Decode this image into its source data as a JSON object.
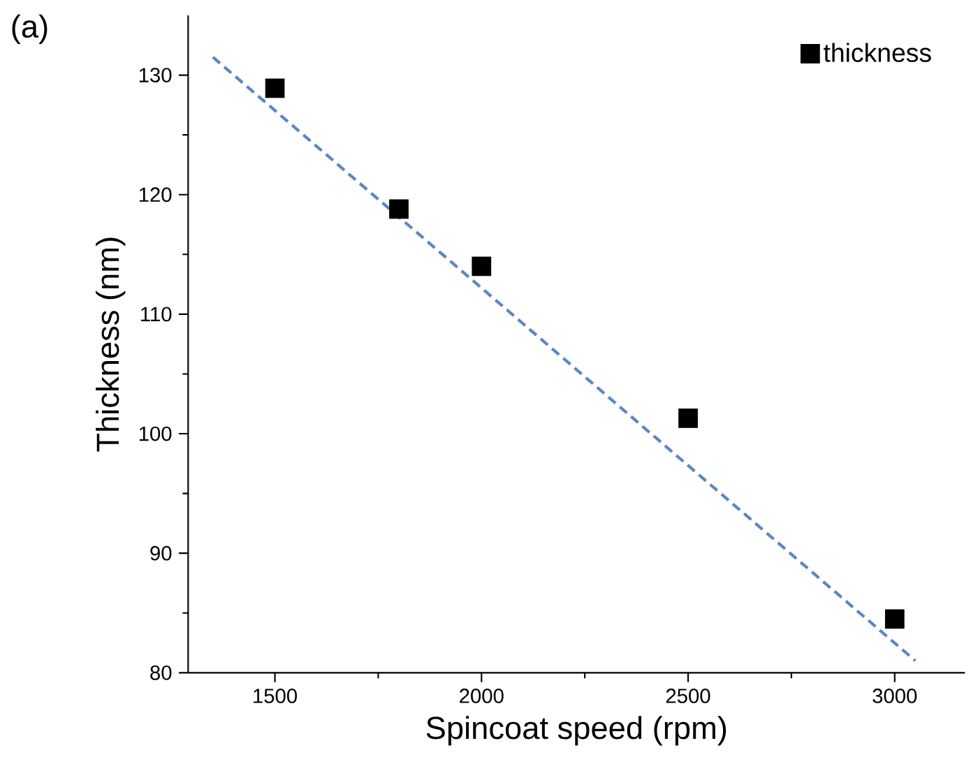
{
  "chart_data": {
    "type": "scatter",
    "xlabel": "Spincoat speed (rpm)",
    "ylabel": "Thickness (nm)",
    "annotations": [
      "(a)"
    ],
    "series": [
      {
        "name": "thickness",
        "color": "#000000",
        "marker": "square",
        "x": [
          1500,
          1800,
          2000,
          2500,
          3000
        ],
        "values": [
          128.9,
          118.8,
          114.0,
          101.3,
          84.5
        ]
      },
      {
        "type": "line",
        "color": "#5b87c5",
        "line_style": "dashed",
        "marker": "none",
        "x": [
          1350,
          3050
        ],
        "values": [
          131.5,
          81.0
        ]
      }
    ],
    "xlim": [
      1290,
      3170
    ],
    "ylim": [
      80,
      135
    ],
    "xticks": [
      1500,
      2000,
      2500,
      3000
    ],
    "yticks": [
      80,
      90,
      100,
      110,
      120,
      130
    ],
    "grid": false,
    "legend": "top right"
  }
}
